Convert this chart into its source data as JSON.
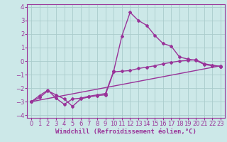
{
  "background_color": "#cce8e8",
  "grid_color": "#aacccc",
  "line_color": "#993399",
  "marker": "D",
  "markersize": 2.0,
  "linewidth": 1.0,
  "xlim": [
    -0.5,
    23.5
  ],
  "ylim": [
    -4.2,
    4.2
  ],
  "xticks": [
    0,
    1,
    2,
    3,
    4,
    5,
    6,
    7,
    8,
    9,
    10,
    11,
    12,
    13,
    14,
    15,
    16,
    17,
    18,
    19,
    20,
    21,
    22,
    23
  ],
  "yticks": [
    -4,
    -3,
    -2,
    -1,
    0,
    1,
    2,
    3,
    4
  ],
  "xlabel": "Windchill (Refroidissement éolien,°C)",
  "xlabel_fontsize": 6.5,
  "tick_fontsize": 6,
  "line1_x": [
    0,
    1,
    2,
    3,
    4,
    5,
    6,
    7,
    8,
    9,
    10,
    11,
    12,
    13,
    14,
    15,
    16,
    17,
    18,
    19,
    20,
    21,
    22,
    23
  ],
  "line1_y": [
    -3.0,
    -2.55,
    -2.15,
    -2.75,
    -3.2,
    -2.8,
    -2.75,
    -2.6,
    -2.5,
    -2.4,
    -0.75,
    1.85,
    3.6,
    3.0,
    2.65,
    1.9,
    1.3,
    1.1,
    0.3,
    0.15,
    0.05,
    -0.25,
    -0.35,
    -0.4
  ],
  "line2_x": [
    0,
    1,
    2,
    3,
    4,
    5,
    6,
    7,
    8,
    9,
    10,
    11,
    12,
    13,
    14,
    15,
    16,
    17,
    18,
    19,
    20,
    21,
    22,
    23
  ],
  "line2_y": [
    -3.0,
    -2.7,
    -2.2,
    -2.5,
    -2.8,
    -3.35,
    -2.8,
    -2.65,
    -2.55,
    -2.5,
    -0.8,
    -0.75,
    -0.7,
    -0.55,
    -0.45,
    -0.35,
    -0.2,
    -0.1,
    0.0,
    0.05,
    0.1,
    -0.2,
    -0.3,
    -0.4
  ],
  "line3_x": [
    0,
    23
  ],
  "line3_y": [
    -3.0,
    -0.35
  ]
}
